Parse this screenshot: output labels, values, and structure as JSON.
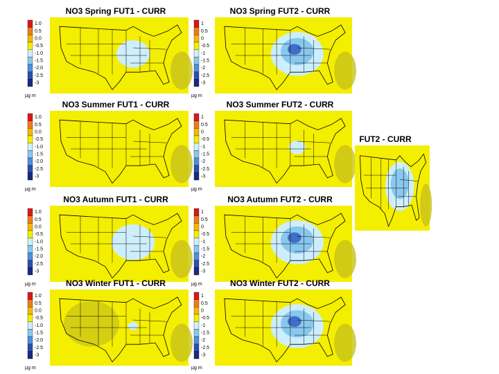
{
  "panels": [
    {
      "title": "NO3 Spring FUT1 - CURR",
      "scale": [
        "1.0",
        "0.5",
        "0.0",
        "-0.5",
        "-1.0",
        "-1.5",
        "-2.0",
        "-2.5",
        "-3"
      ],
      "unit": "µg m"
    },
    {
      "title": "NO3 Spring FUT2 - CURR",
      "scale": [
        "1",
        "0.5",
        "0",
        "-0.5",
        "-1",
        "-1.5",
        "-2",
        "-2.5",
        "-3"
      ],
      "unit": "µg m"
    },
    {
      "title": "NO3 Summer FUT1 - CURR",
      "scale": [
        "1.0",
        "0.5",
        "0.0",
        "-0.5",
        "-1.0",
        "-1.5",
        "-2.0",
        "-2.5",
        "-3"
      ],
      "unit": "µg m"
    },
    {
      "title": "NO3 Summer FUT2 - CURR",
      "scale": [
        "1",
        "0.5",
        "0",
        "-0.5",
        "-1",
        "-1.5",
        "-2",
        "-2.5",
        "-3"
      ],
      "unit": "µg m"
    },
    {
      "title": "NO3 Autumn FUT1 - CURR",
      "scale": [
        "1.0",
        "0.5",
        "0.0",
        "-0.5",
        "-1.0",
        "-1.5",
        "-2.0",
        "-2.5",
        "-3"
      ],
      "unit": "µg m"
    },
    {
      "title": "NO3 Autumn FUT2 - CURR",
      "scale": [
        "1",
        "0.5",
        "0",
        "-0.5",
        "-1",
        "-1.5",
        "-2",
        "-2.5",
        "-3"
      ],
      "unit": "µg m"
    },
    {
      "title": "NO3 Winter FUT1 - CURR",
      "scale": [
        "1.0",
        "0.5",
        "0.0",
        "-0.5",
        "-1.0",
        "-1.5",
        "-2.0",
        "-2.5",
        "-3"
      ],
      "unit": "µg m"
    },
    {
      "title": "NO3 Winter FUT2 - CURR",
      "scale": [
        "1",
        "0.5",
        "0",
        "-0.5",
        "-1",
        "-1.5",
        "-2",
        "-2.5",
        "-3"
      ],
      "unit": "µg m"
    },
    {
      "title": "FUT2 - CURR"
    }
  ]
}
